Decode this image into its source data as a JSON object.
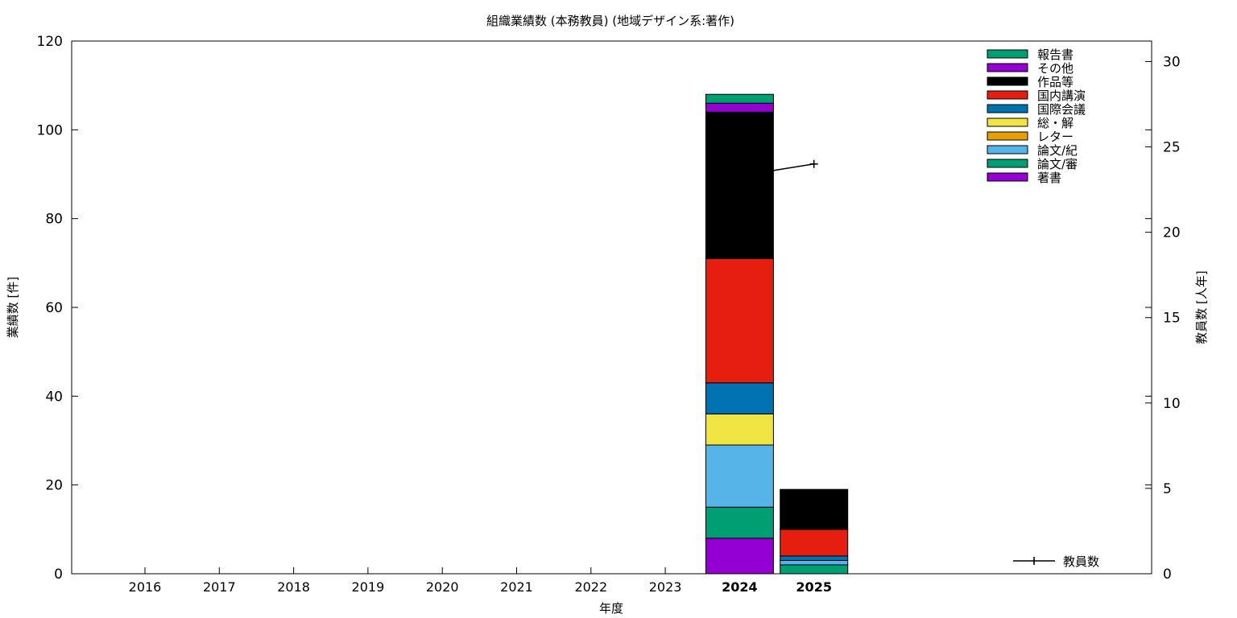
{
  "chart_data": {
    "type": "bar",
    "title": "組織業績数 (本務教員) (地域デザイン系:著作)",
    "xlabel": "年度",
    "ylabel": "業績数 [件]",
    "y2label": "教員数 [人年]",
    "categories": [
      "2016",
      "2017",
      "2018",
      "2019",
      "2020",
      "2021",
      "2022",
      "2023",
      "2024",
      "2025"
    ],
    "bold_categories": [
      "2024",
      "2025"
    ],
    "ylim": [
      0,
      120
    ],
    "yticks": [
      0,
      20,
      40,
      60,
      80,
      100,
      120
    ],
    "y2lim": [
      0,
      31.2
    ],
    "y2ticks": [
      0,
      5,
      10,
      15,
      20,
      25,
      30
    ],
    "stacked": true,
    "legend_position": "top-right",
    "series": [
      {
        "name": "著書",
        "color": "#9400D3",
        "values": [
          0,
          0,
          0,
          0,
          0,
          0,
          0,
          0,
          8,
          0
        ]
      },
      {
        "name": "論文/審",
        "color": "#009E73",
        "values": [
          0,
          0,
          0,
          0,
          0,
          0,
          0,
          0,
          7,
          2
        ]
      },
      {
        "name": "論文/紀",
        "color": "#56B4E9",
        "values": [
          0,
          0,
          0,
          0,
          0,
          0,
          0,
          0,
          14,
          1
        ]
      },
      {
        "name": "レター",
        "color": "#E69F00",
        "values": [
          0,
          0,
          0,
          0,
          0,
          0,
          0,
          0,
          0,
          0
        ]
      },
      {
        "name": "総・解",
        "color": "#F0E442",
        "values": [
          0,
          0,
          0,
          0,
          0,
          0,
          0,
          0,
          7,
          0
        ]
      },
      {
        "name": "国際会議",
        "color": "#0072B2",
        "values": [
          0,
          0,
          0,
          0,
          0,
          0,
          0,
          0,
          7,
          1
        ]
      },
      {
        "name": "国内講演",
        "color": "#E51E10",
        "values": [
          0,
          0,
          0,
          0,
          0,
          0,
          0,
          0,
          28,
          6
        ]
      },
      {
        "name": "作品等",
        "color": "#000000",
        "values": [
          0,
          0,
          0,
          0,
          0,
          0,
          0,
          0,
          33,
          9
        ]
      },
      {
        "name": "その他",
        "color": "#9400D3",
        "values": [
          0,
          0,
          0,
          0,
          0,
          0,
          0,
          0,
          2,
          0
        ]
      },
      {
        "name": "報告書",
        "color": "#009E73",
        "values": [
          0,
          0,
          0,
          0,
          0,
          0,
          0,
          0,
          2,
          0
        ]
      }
    ],
    "line_series": {
      "name": "教員数",
      "axis": "y2",
      "color": "#000000",
      "points": [
        {
          "x": "2024",
          "y": 23.3
        },
        {
          "x": "2025",
          "y": 24.0
        }
      ]
    }
  }
}
